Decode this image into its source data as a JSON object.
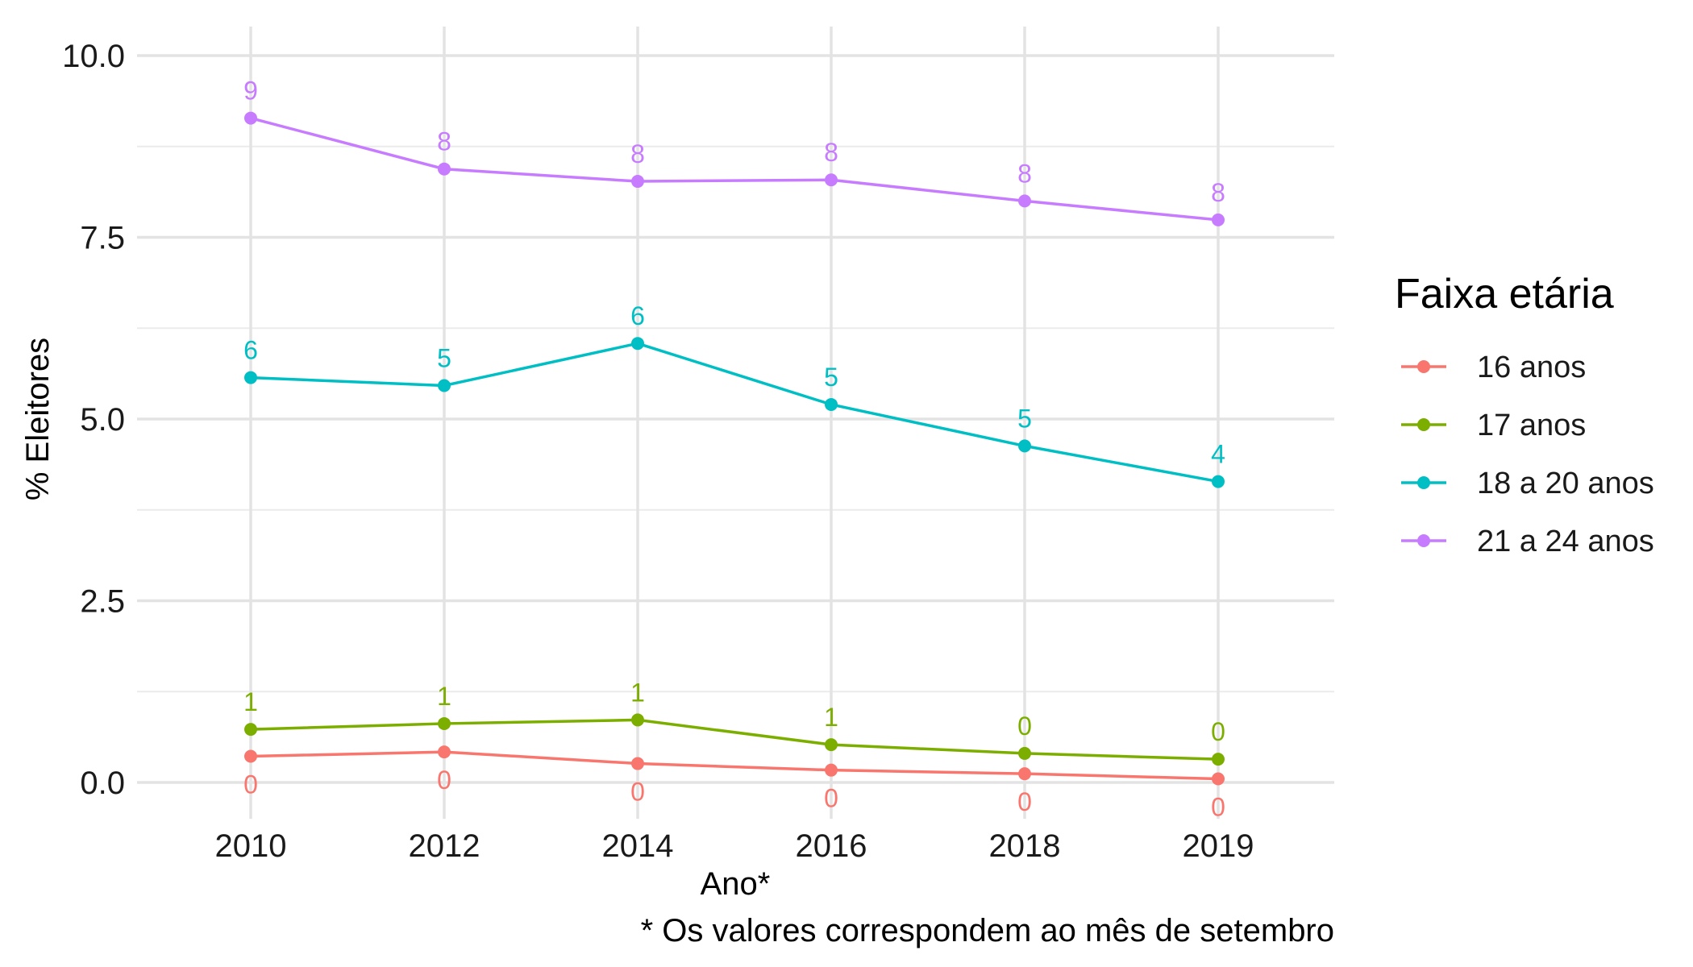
{
  "chart_data": {
    "type": "line",
    "title": "",
    "xlabel": "Ano*",
    "ylabel": "% Eleitores",
    "caption": "* Os valores correspondem ao mês de setembro",
    "x": [
      "2010",
      "2012",
      "2014",
      "2016",
      "2018",
      "2019"
    ],
    "ylim": [
      -0.5,
      10.4
    ],
    "y_ticks": [
      0.0,
      2.5,
      5.0,
      7.5,
      10.0
    ],
    "y_tick_labels": [
      "0.0",
      "2.5",
      "5.0",
      "7.5",
      "10.0"
    ],
    "grid": true,
    "legend": {
      "title": "Faixa etária",
      "position": "right"
    },
    "series": [
      {
        "name": "16 anos",
        "color": "#F8766D",
        "values": [
          0.36,
          0.42,
          0.26,
          0.17,
          0.12,
          0.05
        ],
        "labels": [
          "0",
          "0",
          "0",
          "0",
          "0",
          "0"
        ],
        "label_position": "below"
      },
      {
        "name": "17 anos",
        "color": "#7CAE00",
        "values": [
          0.73,
          0.81,
          0.86,
          0.52,
          0.4,
          0.32
        ],
        "labels": [
          "1",
          "1",
          "1",
          "1",
          "0",
          "0"
        ],
        "label_position": "above"
      },
      {
        "name": "18 a 20 anos",
        "color": "#00BFC4",
        "values": [
          5.57,
          5.46,
          6.04,
          5.2,
          4.63,
          4.14
        ],
        "labels": [
          "6",
          "5",
          "6",
          "5",
          "5",
          "4"
        ],
        "label_position": "above"
      },
      {
        "name": "21 a 24 anos",
        "color": "#C77CFF",
        "values": [
          9.14,
          8.44,
          8.27,
          8.29,
          8.0,
          7.74
        ],
        "labels": [
          "9",
          "8",
          "8",
          "8",
          "8",
          "8"
        ],
        "label_position": "above"
      }
    ]
  }
}
